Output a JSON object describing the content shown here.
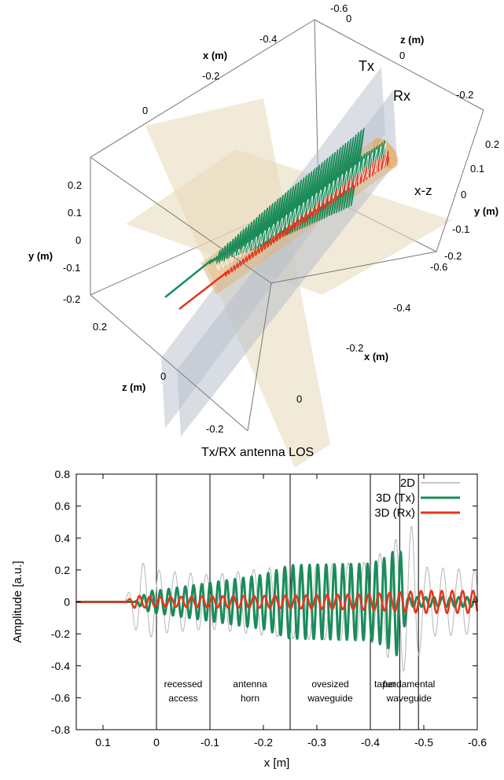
{
  "colors": {
    "s2d": "#b4b4b4",
    "tx": "#1a8c5a",
    "rx": "#e8341c",
    "plane_xz": "#e8d9b8",
    "plane_antenna": "#b8c0cc"
  },
  "panel3d": {
    "caption": "Tx/RX antenna LOS",
    "labels": {
      "tx": "Tx",
      "rx": "Rx",
      "xz": "x-z",
      "x_axis": "x (m)",
      "y_axis": "y (m)",
      "z_axis": "z (m)"
    },
    "ticks": {
      "x_top": [
        "-0.6",
        "-0.4",
        "-0.2",
        "0"
      ],
      "x_bottom": [
        "-0.6",
        "-0.4",
        "-0.2",
        "0"
      ],
      "y_left": [
        "0.2",
        "0.1",
        "0",
        "-0.1",
        "-0.2"
      ],
      "y_right": [
        "0.2",
        "0.1",
        "0",
        "-0.1",
        "-0.2"
      ],
      "z_top": [
        "0",
        "-0.2"
      ],
      "z_bottom": [
        "0.2",
        "0",
        "-0.2"
      ]
    }
  },
  "chart_data": {
    "type": "line",
    "xlabel": "x [m]",
    "ylabel": "Amplitude [a.u.]",
    "xlim": [
      0.15,
      -0.6
    ],
    "ylim": [
      -0.8,
      0.8
    ],
    "xticks": [
      0.1,
      0,
      -0.1,
      -0.2,
      -0.3,
      -0.4,
      -0.5,
      -0.6
    ],
    "xtick_labels": [
      "0.1",
      "0",
      "-0.1",
      "-0.2",
      "-0.3",
      "-0.4",
      "-0.5",
      "-0.6"
    ],
    "yticks": [
      -0.8,
      -0.6,
      -0.4,
      -0.2,
      0,
      0.2,
      0.4,
      0.6,
      0.8
    ],
    "ytick_labels": [
      "-0.8",
      "-0.6",
      "-0.4",
      "-0.2",
      "0",
      "0.2",
      "0.4",
      "0.6",
      "0.8"
    ],
    "legend_position": "top-right",
    "series": [
      {
        "name": "2D",
        "x": [
          0.15,
          0.06,
          0.03,
          0.01,
          0,
          -0.1,
          -0.25,
          -0.4,
          -0.45,
          -0.48,
          -0.5,
          -0.6
        ],
        "envelope": [
          0,
          0,
          0.25,
          0.22,
          0.2,
          0.17,
          0.23,
          0.25,
          0.4,
          0.48,
          0.22,
          0.2
        ]
      },
      {
        "name": "3D (Tx)",
        "x": [
          0.15,
          0.06,
          0.04,
          0.03,
          0.01,
          0,
          -0.1,
          -0.2,
          -0.25,
          -0.4,
          -0.43,
          -0.455,
          -0.47,
          -0.5,
          -0.6
        ],
        "envelope": [
          0,
          0,
          0,
          0.03,
          0.07,
          0.07,
          0.12,
          0.17,
          0.23,
          0.24,
          0.28,
          0.35,
          0.03,
          0.03,
          0.03
        ]
      },
      {
        "name": "3D (Rx)",
        "x": [
          0.15,
          0.06,
          0.04,
          0.0,
          -0.1,
          -0.25,
          -0.4,
          -0.45,
          -0.5,
          -0.6
        ],
        "envelope": [
          0,
          0,
          0.04,
          0.03,
          0.035,
          0.04,
          0.05,
          0.06,
          0.07,
          0.07
        ]
      }
    ],
    "regions": [
      {
        "line1": "recessed",
        "line2": "access"
      },
      {
        "line1": "antenna",
        "line2": "horn"
      },
      {
        "line1": "ovesized",
        "line2": "waveguide"
      },
      {
        "line1": "taper",
        "line2": ""
      },
      {
        "line1": "fundamental",
        "line2": "waveguide"
      }
    ],
    "region_boundaries": [
      0,
      -0.1,
      -0.25,
      -0.4,
      -0.455,
      -0.49
    ]
  }
}
